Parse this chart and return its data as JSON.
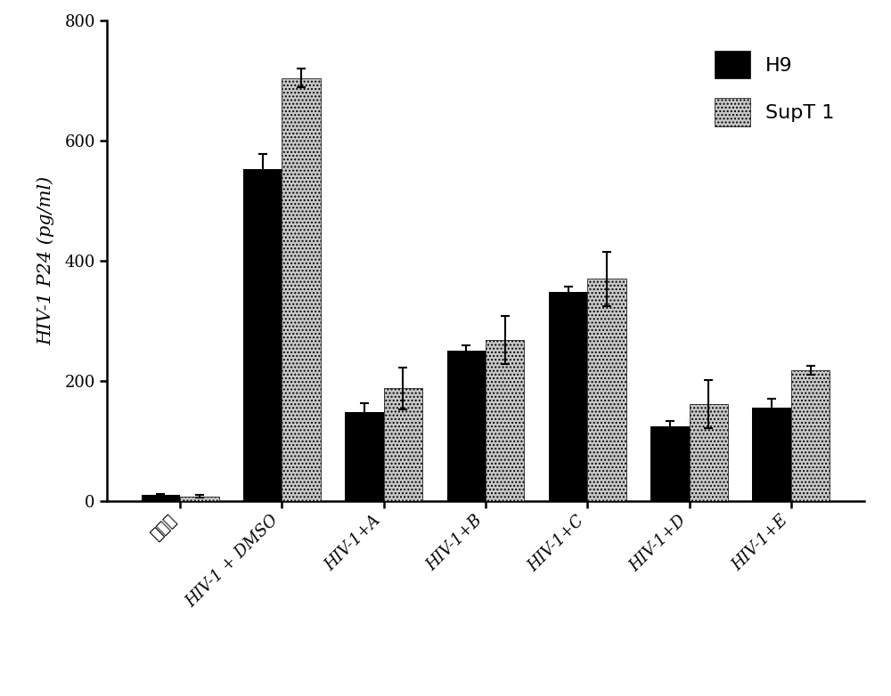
{
  "categories": [
    "未感染",
    "HIV-1 + DMSO",
    "HIV-1+A",
    "HIV-1+B",
    "HIV-1+C",
    "HIV-1+D",
    "HIV-1+E"
  ],
  "H9_values": [
    10,
    553,
    148,
    250,
    348,
    125,
    155
  ],
  "SupT1_values": [
    8,
    705,
    188,
    268,
    370,
    162,
    218
  ],
  "H9_errors": [
    2,
    25,
    15,
    10,
    10,
    8,
    15
  ],
  "SupT1_errors": [
    2,
    15,
    35,
    40,
    45,
    40,
    8
  ],
  "H9_color": "#000000",
  "SupT1_color": "#c8c8c8",
  "SupT1_hatch": "....",
  "ylabel": "HIV-1 P24 (pg/ml)",
  "ylim": [
    0,
    800
  ],
  "yticks": [
    0,
    200,
    400,
    600,
    800
  ],
  "bar_width": 0.38,
  "legend_labels": [
    "H9",
    "SupT 1"
  ],
  "background_color": "#ffffff",
  "figsize": [
    10.0,
    7.82
  ],
  "dpi": 100,
  "label_fontsize": 15,
  "tick_fontsize": 13,
  "legend_fontsize": 16
}
